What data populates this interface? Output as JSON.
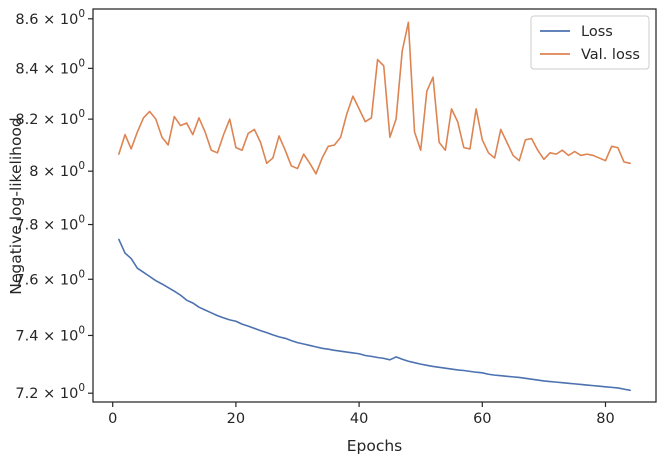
{
  "chart_data": {
    "type": "line",
    "title": "",
    "xlabel": "Epochs",
    "ylabel": "Negative log-likelihood",
    "xlim": [
      -3.2,
      88.2
    ],
    "ylim": [
      7.17,
      8.64
    ],
    "yscale": "log",
    "grid": false,
    "legend_position": "top-right",
    "x_ticks": [
      {
        "value": 0,
        "label": "0"
      },
      {
        "value": 20,
        "label": "20"
      },
      {
        "value": 40,
        "label": "40"
      },
      {
        "value": 60,
        "label": "60"
      },
      {
        "value": 80,
        "label": "80"
      }
    ],
    "y_ticks": [
      {
        "value": 7.2,
        "mantissa": "7.2",
        "sep": " × ",
        "base": "10",
        "exp": "0"
      },
      {
        "value": 7.4,
        "mantissa": "7.4",
        "sep": " × ",
        "base": "10",
        "exp": "0"
      },
      {
        "value": 7.6,
        "mantissa": "7.6",
        "sep": " × ",
        "base": "10",
        "exp": "0"
      },
      {
        "value": 7.8,
        "mantissa": "7.8",
        "sep": " × ",
        "base": "10",
        "exp": "0"
      },
      {
        "value": 8.0,
        "mantissa": "8",
        "sep": " × ",
        "base": "10",
        "exp": "0"
      },
      {
        "value": 8.2,
        "mantissa": "8.2",
        "sep": " × ",
        "base": "10",
        "exp": "0"
      },
      {
        "value": 8.4,
        "mantissa": "8.4",
        "sep": " × ",
        "base": "10",
        "exp": "0"
      },
      {
        "value": 8.6,
        "mantissa": "8.6",
        "sep": " × ",
        "base": "10",
        "exp": "0"
      }
    ],
    "x": [
      1,
      2,
      3,
      4,
      5,
      6,
      7,
      8,
      9,
      10,
      11,
      12,
      13,
      14,
      15,
      16,
      17,
      18,
      19,
      20,
      21,
      22,
      23,
      24,
      25,
      26,
      27,
      28,
      29,
      30,
      31,
      32,
      33,
      34,
      35,
      36,
      37,
      38,
      39,
      40,
      41,
      42,
      43,
      44,
      45,
      46,
      47,
      48,
      49,
      50,
      51,
      52,
      53,
      54,
      55,
      56,
      57,
      58,
      59,
      60,
      61,
      62,
      63,
      64,
      65,
      66,
      67,
      68,
      69,
      70,
      71,
      72,
      73,
      74,
      75,
      76,
      77,
      78,
      79,
      80,
      81,
      82,
      83,
      84
    ],
    "series": [
      {
        "name": "Loss",
        "color": "#4c72b0",
        "values": [
          7.745,
          7.695,
          7.675,
          7.64,
          7.625,
          7.61,
          7.595,
          7.583,
          7.57,
          7.557,
          7.543,
          7.525,
          7.515,
          7.5,
          7.49,
          7.48,
          7.47,
          7.462,
          7.455,
          7.45,
          7.44,
          7.433,
          7.425,
          7.417,
          7.41,
          7.402,
          7.395,
          7.39,
          7.382,
          7.375,
          7.37,
          7.365,
          7.36,
          7.355,
          7.352,
          7.348,
          7.345,
          7.342,
          7.339,
          7.336,
          7.33,
          7.327,
          7.323,
          7.32,
          7.315,
          7.325,
          7.317,
          7.31,
          7.305,
          7.3,
          7.296,
          7.292,
          7.289,
          7.286,
          7.283,
          7.28,
          7.278,
          7.275,
          7.272,
          7.27,
          7.265,
          7.262,
          7.26,
          7.258,
          7.256,
          7.254,
          7.251,
          7.248,
          7.245,
          7.242,
          7.24,
          7.238,
          7.236,
          7.234,
          7.232,
          7.23,
          7.228,
          7.226,
          7.224,
          7.222,
          7.22,
          7.218,
          7.214,
          7.21
        ]
      },
      {
        "name": "Val. loss",
        "color": "#dd8452",
        "values": [
          8.065,
          8.14,
          8.085,
          8.15,
          8.205,
          8.23,
          8.2,
          8.13,
          8.1,
          8.21,
          8.175,
          8.185,
          8.14,
          8.205,
          8.15,
          8.08,
          8.07,
          8.14,
          8.2,
          8.09,
          8.08,
          8.145,
          8.16,
          8.11,
          8.03,
          8.05,
          8.135,
          8.08,
          8.02,
          8.01,
          8.065,
          8.03,
          7.99,
          8.05,
          8.095,
          8.1,
          8.13,
          8.22,
          8.29,
          8.24,
          8.19,
          8.205,
          8.435,
          8.41,
          8.13,
          8.2,
          8.47,
          8.585,
          8.15,
          8.08,
          8.31,
          8.365,
          8.11,
          8.08,
          8.24,
          8.19,
          8.09,
          8.085,
          8.24,
          8.12,
          8.07,
          8.05,
          8.16,
          8.11,
          8.06,
          8.04,
          8.12,
          8.125,
          8.08,
          8.045,
          8.07,
          8.065,
          8.08,
          8.06,
          8.075,
          8.06,
          8.065,
          8.06,
          8.05,
          8.04,
          8.095,
          8.09,
          8.035,
          8.03
        ]
      }
    ]
  }
}
